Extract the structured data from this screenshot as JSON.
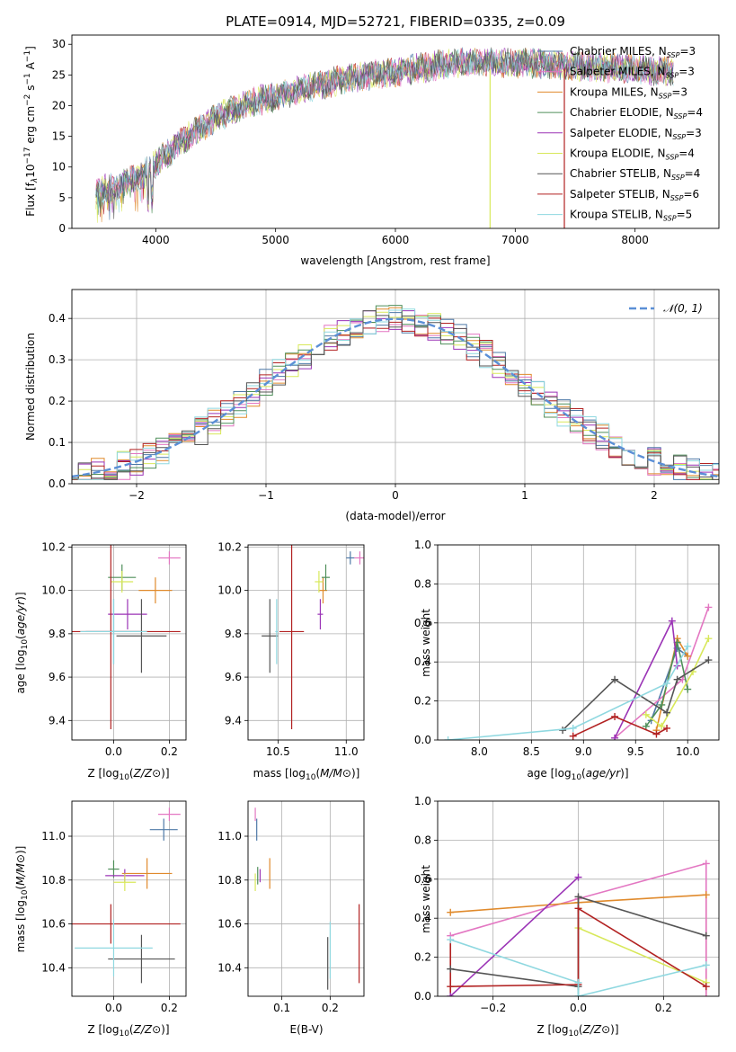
{
  "colors": {
    "chab_miles": "#4e79a7",
    "salp_miles": "#e377c2",
    "krou_miles": "#e08a2c",
    "chab_elodie": "#4f8f5a",
    "salp_elodie": "#9b34b6",
    "krou_elodie": "#d8e85a",
    "chab_stelib": "#555555",
    "salp_stelib": "#b22222",
    "krou_stelib": "#8fd8e0",
    "normal": "#5b8fd6",
    "grid": "#b0b0b0"
  },
  "series_legend": [
    {
      "key": "chab_miles",
      "text": "Chabrier MILES, N",
      "sub": "SSP",
      "tail": "=3"
    },
    {
      "key": "salp_miles",
      "text": "Salpeter MILES, N",
      "sub": "SSP",
      "tail": "=3"
    },
    {
      "key": "krou_miles",
      "text": "Kroupa MILES, N",
      "sub": "SSP",
      "tail": "=3"
    },
    {
      "key": "chab_elodie",
      "text": "Chabrier ELODIE, N",
      "sub": "SSP",
      "tail": "=4"
    },
    {
      "key": "salp_elodie",
      "text": "Salpeter ELODIE, N",
      "sub": "SSP",
      "tail": "=3"
    },
    {
      "key": "krou_elodie",
      "text": "Kroupa ELODIE, N",
      "sub": "SSP",
      "tail": "=4"
    },
    {
      "key": "chab_stelib",
      "text": "Chabrier STELIB, N",
      "sub": "SSP",
      "tail": "=4"
    },
    {
      "key": "salp_stelib",
      "text": "Salpeter STELIB, N",
      "sub": "SSP",
      "tail": "=6"
    },
    {
      "key": "krou_stelib",
      "text": "Kroupa STELIB, N",
      "sub": "SSP",
      "tail": "=5"
    }
  ],
  "chart_data": [
    {
      "id": "spectrum",
      "type": "line",
      "title": "PLATE=0914, MJD=52721, FIBERID=0335, z=0.09",
      "xlabel": "wavelength [Angstrom, rest frame]",
      "ylabel_parts": [
        "Flux [f",
        "λ",
        "10",
        "−17",
        " erg cm",
        "−2",
        " s",
        "−1",
        " A",
        "−1",
        "]"
      ],
      "xlim": [
        3300,
        8700
      ],
      "ylim": [
        0,
        31.5
      ],
      "xticks": [
        4000,
        5000,
        6000,
        7000,
        8000
      ],
      "yticks": [
        0,
        5,
        10,
        15,
        20,
        25,
        30
      ],
      "continuum_knots": [
        [
          3500,
          6
        ],
        [
          3700,
          7
        ],
        [
          3900,
          9
        ],
        [
          4000,
          10.5
        ],
        [
          4200,
          14
        ],
        [
          4500,
          18
        ],
        [
          4800,
          20.5
        ],
        [
          5200,
          22.5
        ],
        [
          5600,
          24.5
        ],
        [
          6000,
          25.5
        ],
        [
          6500,
          27
        ],
        [
          7000,
          27
        ],
        [
          7500,
          26.5
        ],
        [
          8000,
          26
        ],
        [
          8300,
          25.5
        ]
      ],
      "range": [
        3500,
        8320
      ],
      "glitches": [
        {
          "series": "krou_elodie",
          "x": 6790
        },
        {
          "series": "salp_stelib",
          "x": 7410
        }
      ],
      "grid": false,
      "legend": "top-right"
    },
    {
      "id": "residuals",
      "type": "bar",
      "xlabel": "(data-model)/error",
      "ylabel": "Normed distribution",
      "xlim": [
        -2.5,
        2.5
      ],
      "ylim": [
        0,
        0.47
      ],
      "xticks": [
        -2,
        -1,
        0,
        1,
        2
      ],
      "yticks": [
        0.0,
        0.1,
        0.2,
        0.3,
        0.4
      ],
      "bin_width": 0.1,
      "normal_label": "N(0,1)",
      "grid": true,
      "legend": "top-right"
    },
    {
      "id": "age_vs_Z",
      "type": "scatter",
      "xlabel": "Z [log10(Z/Z⊙)]",
      "ylabel": "age  [log10(age/yr)]",
      "xlim": [
        -0.15,
        0.26
      ],
      "ylim": [
        9.31,
        10.21
      ],
      "xticks": [
        0.0,
        0.2
      ],
      "yticks": [
        9.4,
        9.6,
        9.8,
        10.0,
        10.2
      ],
      "points": [
        {
          "s": "chab_miles",
          "x": 0.0,
          "y": 9.81,
          "ex": 0.1,
          "ey": 0.15
        },
        {
          "s": "salp_miles",
          "x": 0.2,
          "y": 10.15,
          "ex": 0.04,
          "ey": 0.03
        },
        {
          "s": "krou_miles",
          "x": 0.15,
          "y": 10.0,
          "ex": 0.06,
          "ey": 0.06
        },
        {
          "s": "chab_elodie",
          "x": 0.03,
          "y": 10.06,
          "ex": 0.05,
          "ey": 0.06
        },
        {
          "s": "salp_elodie",
          "x": 0.05,
          "y": 9.89,
          "ex": 0.07,
          "ey": 0.07
        },
        {
          "s": "krou_elodie",
          "x": 0.03,
          "y": 10.04,
          "ex": 0.04,
          "ey": 0.05
        },
        {
          "s": "chab_stelib",
          "x": 0.1,
          "y": 9.79,
          "ex": 0.09,
          "ey": 0.17
        },
        {
          "s": "salp_stelib",
          "x": -0.01,
          "y": 9.81,
          "ex": 0.25,
          "ey": 0.45
        },
        {
          "s": "krou_stelib",
          "x": 0.0,
          "y": 9.81,
          "ex": 0.12,
          "ey": 0.15
        }
      ],
      "grid": true
    },
    {
      "id": "age_vs_mass",
      "type": "scatter",
      "xlabel": "mass [log10(M/M⊙)]",
      "ylabel": "",
      "xlim": [
        10.28,
        11.13
      ],
      "ylim": [
        9.31,
        10.21
      ],
      "xticks": [
        10.5,
        11.0
      ],
      "yticks": [
        9.4,
        9.6,
        9.8,
        10.0,
        10.2
      ],
      "points": [
        {
          "s": "chab_miles",
          "x": 11.03,
          "y": 10.15,
          "ex": 0.03,
          "ey": 0.03
        },
        {
          "s": "salp_miles",
          "x": 11.1,
          "y": 10.15,
          "ex": 0.04,
          "ey": 0.03
        },
        {
          "s": "krou_miles",
          "x": 10.83,
          "y": 10.0,
          "ex": 0.03,
          "ey": 0.06
        },
        {
          "s": "chab_elodie",
          "x": 10.85,
          "y": 10.06,
          "ex": 0.03,
          "ey": 0.06
        },
        {
          "s": "salp_elodie",
          "x": 10.81,
          "y": 9.89,
          "ex": 0.02,
          "ey": 0.07
        },
        {
          "s": "krou_elodie",
          "x": 10.8,
          "y": 10.04,
          "ex": 0.03,
          "ey": 0.05
        },
        {
          "s": "chab_stelib",
          "x": 10.44,
          "y": 9.79,
          "ex": 0.06,
          "ey": 0.17
        },
        {
          "s": "salp_stelib",
          "x": 10.6,
          "y": 9.81,
          "ex": 0.09,
          "ey": 0.45
        },
        {
          "s": "krou_stelib",
          "x": 10.49,
          "y": 9.81,
          "ex": 0.01,
          "ey": 0.15
        }
      ],
      "grid": true
    },
    {
      "id": "weight_vs_age",
      "type": "line",
      "xlabel": "age  [log10(age/yr)]",
      "ylabel": "mass weight",
      "xlim": [
        7.6,
        10.3
      ],
      "ylim": [
        0,
        1.0
      ],
      "xticks": [
        8.0,
        8.5,
        9.0,
        9.5,
        10.0
      ],
      "yticks": [
        0.0,
        0.2,
        0.4,
        0.6,
        0.8,
        1.0
      ],
      "series": [
        {
          "s": "chab_miles",
          "pts": [
            [
              9.65,
              0.1
            ],
            [
              9.9,
              0.47
            ],
            [
              10.0,
              0.43
            ]
          ]
        },
        {
          "s": "salp_miles",
          "pts": [
            [
              9.3,
              0.01
            ],
            [
              9.95,
              0.31
            ],
            [
              10.2,
              0.68
            ]
          ]
        },
        {
          "s": "krou_miles",
          "pts": [
            [
              9.7,
              0.05
            ],
            [
              9.9,
              0.52
            ],
            [
              10.0,
              0.43
            ]
          ]
        },
        {
          "s": "chab_elodie",
          "pts": [
            [
              9.6,
              0.07
            ],
            [
              9.75,
              0.18
            ],
            [
              9.9,
              0.5
            ],
            [
              10.0,
              0.26
            ]
          ]
        },
        {
          "s": "salp_elodie",
          "pts": [
            [
              9.3,
              0.01
            ],
            [
              9.85,
              0.61
            ],
            [
              9.9,
              0.38
            ]
          ]
        },
        {
          "s": "krou_elodie",
          "pts": [
            [
              9.6,
              0.13
            ],
            [
              9.75,
              0.07
            ],
            [
              10.05,
              0.35
            ],
            [
              10.2,
              0.52
            ]
          ]
        },
        {
          "s": "chab_stelib",
          "pts": [
            [
              8.8,
              0.05
            ],
            [
              9.3,
              0.31
            ],
            [
              9.8,
              0.14
            ],
            [
              9.9,
              0.31
            ],
            [
              10.2,
              0.41
            ]
          ]
        },
        {
          "s": "salp_stelib",
          "pts": [
            [
              8.9,
              0.02
            ],
            [
              9.3,
              0.12
            ],
            [
              9.7,
              0.03
            ],
            [
              9.8,
              0.06
            ]
          ]
        },
        {
          "s": "krou_stelib",
          "pts": [
            [
              7.7,
              0.0
            ],
            [
              8.9,
              0.06
            ],
            [
              9.8,
              0.29
            ],
            [
              10.0,
              0.48
            ]
          ]
        }
      ],
      "grid": true
    },
    {
      "id": "mass_vs_Z",
      "type": "scatter",
      "xlabel": "Z [log10(Z/Z⊙)]",
      "ylabel": "mass [log10(M/M⊙)]",
      "xlim": [
        -0.15,
        0.26
      ],
      "ylim": [
        10.27,
        11.16
      ],
      "xticks": [
        0.0,
        0.2
      ],
      "yticks": [
        10.4,
        10.6,
        10.8,
        11.0
      ],
      "points": [
        {
          "s": "chab_miles",
          "x": 0.18,
          "y": 11.03,
          "ex": 0.05,
          "ey": 0.05
        },
        {
          "s": "salp_miles",
          "x": 0.2,
          "y": 11.1,
          "ex": 0.04,
          "ey": 0.03
        },
        {
          "s": "krou_miles",
          "x": 0.12,
          "y": 10.83,
          "ex": 0.09,
          "ey": 0.07
        },
        {
          "s": "chab_elodie",
          "x": 0.0,
          "y": 10.85,
          "ex": 0.02,
          "ey": 0.04
        },
        {
          "s": "salp_elodie",
          "x": 0.04,
          "y": 10.82,
          "ex": 0.07,
          "ey": 0.03
        },
        {
          "s": "krou_elodie",
          "x": 0.04,
          "y": 10.79,
          "ex": 0.04,
          "ey": 0.04
        },
        {
          "s": "chab_stelib",
          "x": 0.1,
          "y": 10.44,
          "ex": 0.12,
          "ey": 0.11
        },
        {
          "s": "salp_stelib",
          "x": -0.01,
          "y": 10.6,
          "ex": 0.25,
          "ey": 0.09
        },
        {
          "s": "krou_stelib",
          "x": 0.0,
          "y": 10.49,
          "ex": 0.14,
          "ey": 0.13
        }
      ],
      "grid": true
    },
    {
      "id": "mass_vs_ebv",
      "type": "scatter",
      "xlabel": "E(B-V)",
      "ylabel": "",
      "xlim": [
        0.03,
        0.27
      ],
      "ylim": [
        10.27,
        11.16
      ],
      "xticks": [
        0.1,
        0.2
      ],
      "yticks": [
        10.4,
        10.6,
        10.8,
        11.0
      ],
      "points": [
        {
          "s": "chab_miles",
          "x": 0.048,
          "y": 11.03,
          "ex": 0.0,
          "ey": 0.05
        },
        {
          "s": "salp_miles",
          "x": 0.045,
          "y": 11.1,
          "ex": 0.0,
          "ey": 0.03
        },
        {
          "s": "krou_miles",
          "x": 0.075,
          "y": 10.83,
          "ex": 0.0,
          "ey": 0.07
        },
        {
          "s": "chab_elodie",
          "x": 0.05,
          "y": 10.82,
          "ex": 0.0,
          "ey": 0.04
        },
        {
          "s": "salp_elodie",
          "x": 0.055,
          "y": 10.82,
          "ex": 0.0,
          "ey": 0.03
        },
        {
          "s": "krou_elodie",
          "x": 0.045,
          "y": 10.79,
          "ex": 0.0,
          "ey": 0.04
        },
        {
          "s": "chab_stelib",
          "x": 0.195,
          "y": 10.42,
          "ex": 0.0,
          "ey": 0.12
        },
        {
          "s": "salp_stelib",
          "x": 0.26,
          "y": 10.51,
          "ex": 0.0,
          "ey": 0.18
        },
        {
          "s": "krou_stelib",
          "x": 0.2,
          "y": 10.48,
          "ex": 0.0,
          "ey": 0.13
        }
      ],
      "grid": true
    },
    {
      "id": "weight_vs_Z",
      "type": "line",
      "xlabel": "Z [log10(Z/Z⊙)]",
      "ylabel": "mass weight",
      "xlim": [
        -0.33,
        0.33
      ],
      "ylim": [
        0,
        1.0
      ],
      "xticks": [
        -0.2,
        0.0,
        0.2
      ],
      "yticks": [
        0.0,
        0.2,
        0.4,
        0.6,
        0.8,
        1.0
      ],
      "series": [
        {
          "s": "salp_miles",
          "pts": [
            [
              -0.3,
              0.31
            ],
            [
              0.0,
              0.5
            ],
            [
              0.3,
              0.68
            ]
          ]
        },
        {
          "s": "krou_miles",
          "pts": [
            [
              -0.3,
              0.43
            ],
            [
              0.0,
              0.48
            ],
            [
              0.3,
              0.52
            ]
          ]
        },
        {
          "s": "salp_elodie",
          "pts": [
            [
              -0.3,
              0.0
            ],
            [
              0.0,
              0.61
            ]
          ]
        },
        {
          "s": "krou_elodie",
          "pts": [
            [
              0.0,
              0.35
            ],
            [
              0.3,
              0.07
            ]
          ]
        },
        {
          "s": "chab_stelib",
          "pts": [
            [
              -0.3,
              0.14
            ],
            [
              0.0,
              0.05
            ],
            [
              0.0,
              0.51
            ],
            [
              0.3,
              0.31
            ]
          ]
        },
        {
          "s": "salp_stelib",
          "pts": [
            [
              -0.3,
              0.05
            ],
            [
              0.0,
              0.06
            ],
            [
              0.0,
              0.45
            ],
            [
              0.3,
              0.05
            ]
          ]
        },
        {
          "s": "krou_stelib",
          "pts": [
            [
              -0.3,
              0.29
            ],
            [
              0.0,
              0.07
            ],
            [
              0.0,
              0.0
            ],
            [
              0.3,
              0.16
            ]
          ]
        }
      ],
      "vsegments": [
        {
          "s": "chab_elodie",
          "x": 0.0,
          "y0": 0.0,
          "y1": 0.5
        },
        {
          "s": "krou_stelib",
          "x": 0.0,
          "y0": 0.0,
          "y1": 0.48
        },
        {
          "s": "krou_miles",
          "x": 0.3,
          "y0": 0.0,
          "y1": 0.52
        },
        {
          "s": "salp_stelib",
          "x": -0.3,
          "y0": 0.0,
          "y1": 0.29
        },
        {
          "s": "salp_miles",
          "x": 0.3,
          "y0": 0.0,
          "y1": 0.68
        }
      ],
      "grid": true
    }
  ]
}
